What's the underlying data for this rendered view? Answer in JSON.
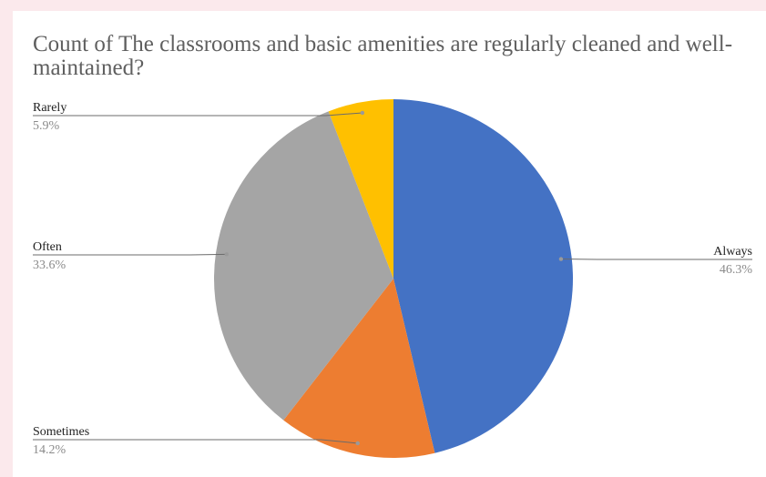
{
  "chart_data": {
    "type": "pie",
    "title": "Count of The classrooms and basic amenities are regularly cleaned and well-maintained?",
    "categories": [
      "Always",
      "Sometimes",
      "Often",
      "Rarely"
    ],
    "values": [
      46.3,
      14.2,
      33.6,
      5.9
    ],
    "labels": [
      "46.3%",
      "14.2%",
      "33.6%",
      "5.9%"
    ],
    "colors": [
      "#4472c4",
      "#ed7d31",
      "#a5a5a5",
      "#ffc000"
    ],
    "legend": "none"
  }
}
